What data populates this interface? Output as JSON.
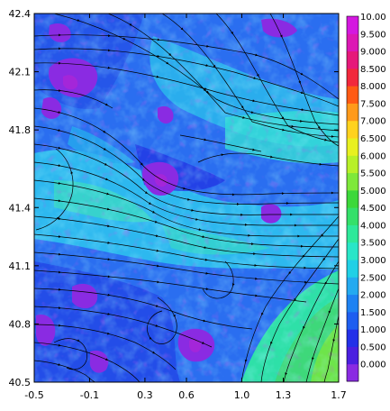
{
  "chart_data": {
    "type": "heatmap",
    "title": "",
    "xlabel": "",
    "ylabel": "",
    "xlim": [
      -0.5,
      1.7
    ],
    "ylim": [
      40.5,
      42.4
    ],
    "x_ticks": [
      "-0.5",
      "-0.1",
      "0.3",
      "0.6",
      "1.0",
      "1.3",
      "1.7"
    ],
    "x_tick_values": [
      -0.5,
      -0.1,
      0.3,
      0.6,
      1.0,
      1.3,
      1.7
    ],
    "y_ticks": [
      "40.5",
      "40.8",
      "41.1",
      "41.4",
      "41.8",
      "42.1",
      "42.4"
    ],
    "y_tick_values": [
      40.5,
      40.8,
      41.1,
      41.4,
      41.8,
      42.1,
      42.4
    ],
    "grid": false,
    "overlay": "streamlines",
    "colorbar": {
      "placement": "right",
      "levels": [
        "0.000",
        "0.500",
        "1.000",
        "1.500",
        "2.000",
        "2.500",
        "3.000",
        "3.500",
        "4.000",
        "4.500",
        "5.000",
        "5.500",
        "6.000",
        "6.500",
        "7.000",
        "7.500",
        "8.000",
        "8.500",
        "9.000",
        "9.500",
        "10.00"
      ],
      "colors": [
        "#8a2be2",
        "#4b1fe0",
        "#2330e8",
        "#1e5ef0",
        "#1e82f2",
        "#24aaf0",
        "#20d0e6",
        "#28e6c8",
        "#2ee89a",
        "#34e06a",
        "#3cd83a",
        "#7ee83a",
        "#b8f028",
        "#e8f020",
        "#ffd21e",
        "#ff9a1a",
        "#ff5a14",
        "#f2283c",
        "#e6197a",
        "#dc18b4",
        "#d418e0"
      ]
    }
  }
}
